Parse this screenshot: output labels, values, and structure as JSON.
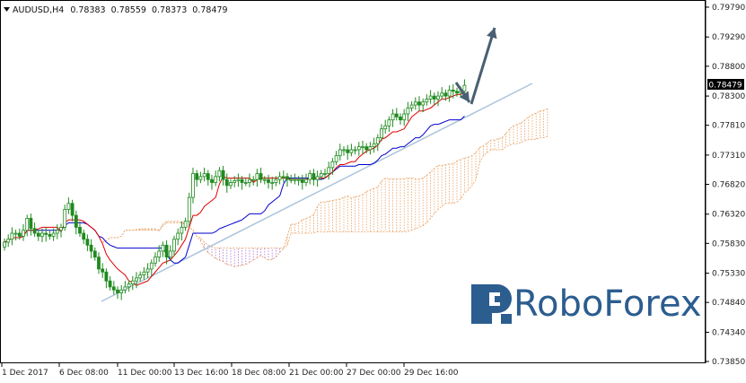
{
  "header": {
    "symbol": "AUDUSD,H4",
    "open": "0.78383",
    "high": "0.78559",
    "low": "0.78373",
    "close": "0.78479"
  },
  "logo": {
    "text": "RoboForex"
  },
  "chart_data": {
    "type": "candlestick",
    "title": "AUDUSD,H4",
    "y_range": [
      0.7385,
      0.7979
    ],
    "y_ticks": [
      "0.79790",
      "0.79290",
      "0.78800",
      "0.78300",
      "0.77810",
      "0.77310",
      "0.76820",
      "0.76320",
      "0.75830",
      "0.75330",
      "0.74840",
      "0.74340",
      "0.73850"
    ],
    "x_ticks": [
      "1 Dec 2017",
      "6 Dec 08:00",
      "11 Dec 00:00",
      "13 Dec 16:00",
      "18 Dec 08:00",
      "21 Dec 00:00",
      "27 Dec 00:00",
      "29 Dec 16:00"
    ],
    "current_price": "0.78479",
    "colors": {
      "up": "#1f8a1f",
      "down": "#1f8a1f",
      "tenkan": "#e00000",
      "kijun": "#0000cc",
      "cloud": "#e8a060",
      "cloud_alt": "#b070d0",
      "trendline": "#aac4dc",
      "forecast_arrow": "#4a5f72"
    },
    "closes": [
      0.7585,
      0.759,
      0.76,
      0.76,
      0.7595,
      0.7605,
      0.7625,
      0.7608,
      0.76,
      0.7595,
      0.76,
      0.7598,
      0.7595,
      0.76,
      0.7605,
      0.761,
      0.764,
      0.765,
      0.763,
      0.761,
      0.76,
      0.759,
      0.758,
      0.757,
      0.756,
      0.754,
      0.7535,
      0.752,
      0.751,
      0.7505,
      0.75,
      0.7505,
      0.751,
      0.7515,
      0.752,
      0.7525,
      0.753,
      0.7535,
      0.754,
      0.755,
      0.756,
      0.757,
      0.758,
      0.756,
      0.757,
      0.759,
      0.76,
      0.761,
      0.762,
      0.766,
      0.77,
      0.769,
      0.7695,
      0.77,
      0.769,
      0.7685,
      0.7695,
      0.7705,
      0.769,
      0.768,
      0.7685,
      0.7688,
      0.769,
      0.7685,
      0.7685,
      0.769,
      0.769,
      0.77,
      0.769,
      0.769,
      0.7685,
      0.7685,
      0.769,
      0.7695,
      0.7695,
      0.769,
      0.769,
      0.769,
      0.769,
      0.7685,
      0.769,
      0.77,
      0.769,
      0.7695,
      0.77,
      0.77,
      0.771,
      0.772,
      0.773,
      0.774,
      0.774,
      0.7735,
      0.774,
      0.774,
      0.7745,
      0.7745,
      0.774,
      0.7745,
      0.775,
      0.776,
      0.7775,
      0.778,
      0.779,
      0.78,
      0.7795,
      0.779,
      0.78,
      0.781,
      0.7815,
      0.782,
      0.7815,
      0.782,
      0.7825,
      0.783,
      0.7825,
      0.783,
      0.7835,
      0.783,
      0.784,
      0.7838,
      0.7835,
      0.7838,
      0.7848
    ]
  }
}
